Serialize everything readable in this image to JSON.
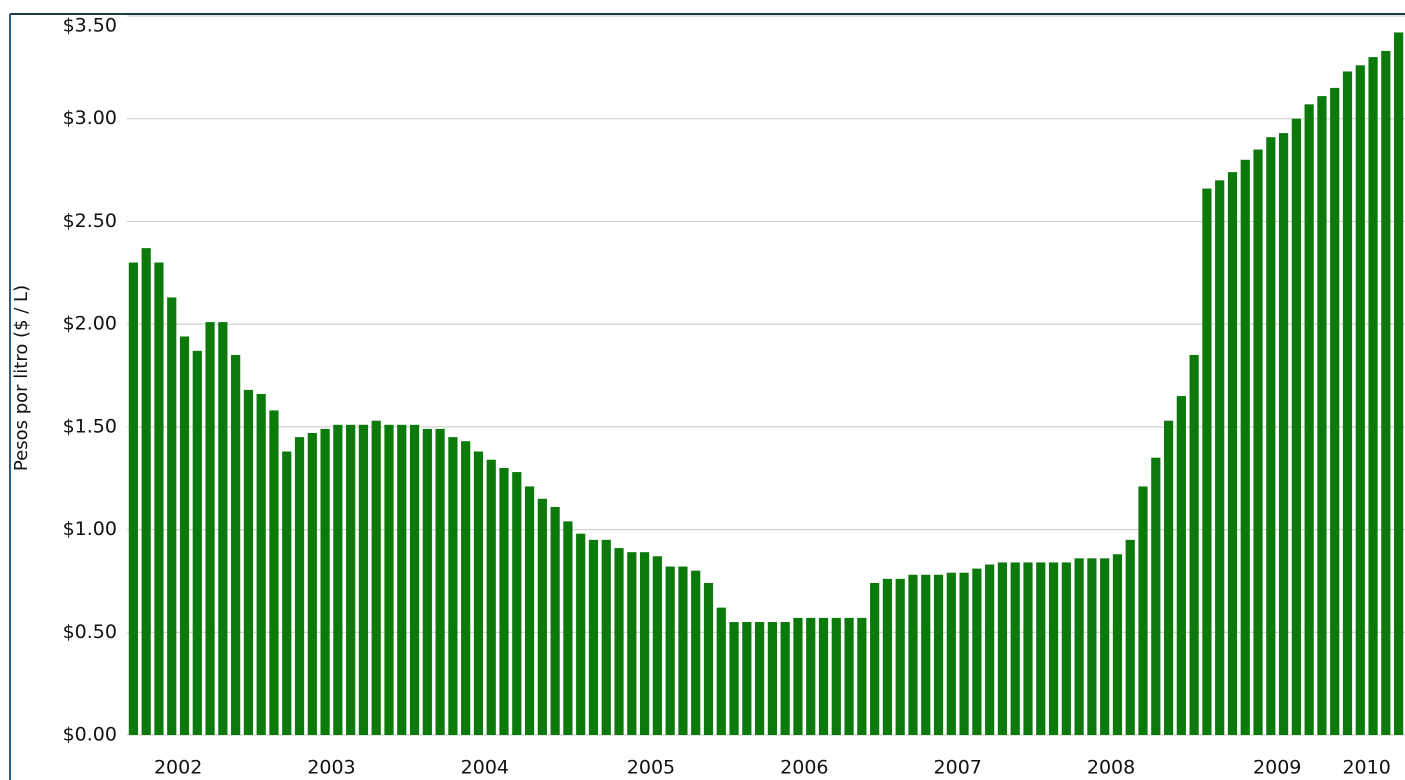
{
  "chart_data": {
    "type": "bar",
    "y_label": "Pesos por litro ($ / L)",
    "categories": [
      null,
      null,
      null,
      "2002",
      null,
      null,
      null,
      null,
      null,
      null,
      null,
      null,
      null,
      null,
      null,
      "2003",
      null,
      null,
      null,
      null,
      null,
      null,
      null,
      null,
      null,
      null,
      null,
      "2004",
      null,
      null,
      null,
      null,
      null,
      null,
      null,
      null,
      null,
      null,
      null,
      null,
      "2005",
      null,
      null,
      null,
      null,
      null,
      null,
      null,
      null,
      null,
      null,
      null,
      "2006",
      null,
      null,
      null,
      null,
      null,
      null,
      null,
      null,
      null,
      null,
      null,
      "2007",
      null,
      null,
      null,
      null,
      null,
      null,
      null,
      null,
      null,
      null,
      null,
      "2008",
      null,
      null,
      null,
      null,
      null,
      null,
      null,
      null,
      null,
      null,
      null,
      null,
      "2009",
      null,
      null,
      null,
      null,
      null,
      null,
      "2010",
      null,
      null,
      null
    ],
    "values": [
      2.3,
      2.37,
      2.3,
      2.13,
      1.94,
      1.87,
      2.01,
      2.01,
      1.85,
      1.68,
      1.66,
      1.58,
      1.38,
      1.45,
      1.47,
      1.49,
      1.51,
      1.51,
      1.51,
      1.53,
      1.51,
      1.51,
      1.51,
      1.49,
      1.49,
      1.45,
      1.43,
      1.38,
      1.34,
      1.3,
      1.28,
      1.21,
      1.15,
      1.11,
      1.04,
      0.98,
      0.95,
      0.95,
      0.91,
      0.89,
      0.89,
      0.87,
      0.82,
      0.82,
      0.8,
      0.74,
      0.62,
      0.55,
      0.55,
      0.55,
      0.55,
      0.55,
      0.57,
      0.57,
      0.57,
      0.57,
      0.57,
      0.57,
      0.74,
      0.76,
      0.76,
      0.78,
      0.78,
      0.78,
      0.79,
      0.79,
      0.81,
      0.83,
      0.84,
      0.84,
      0.84,
      0.84,
      0.84,
      0.84,
      0.86,
      0.86,
      0.86,
      0.88,
      0.95,
      1.21,
      1.35,
      1.53,
      1.65,
      1.85,
      2.66,
      2.7,
      2.74,
      2.8,
      2.85,
      2.91,
      2.93,
      3.0,
      3.07,
      3.11,
      3.15,
      3.23,
      3.26,
      3.3,
      3.33,
      3.42
    ],
    "color": "#0b7a0b",
    "ylim": [
      0,
      3.5
    ],
    "yticks": [
      {
        "value": 0,
        "label": "$0.00"
      },
      {
        "value": 0.5,
        "label": "$0.50"
      },
      {
        "value": 1,
        "label": "$1.00"
      },
      {
        "value": 1.5,
        "label": "$1.50"
      },
      {
        "value": 2,
        "label": "$2.00"
      },
      {
        "value": 2.5,
        "label": "$2.50"
      },
      {
        "value": 3,
        "label": "$3.00"
      },
      {
        "value": 3.5,
        "label": "$3.50"
      }
    ],
    "grid": true
  }
}
